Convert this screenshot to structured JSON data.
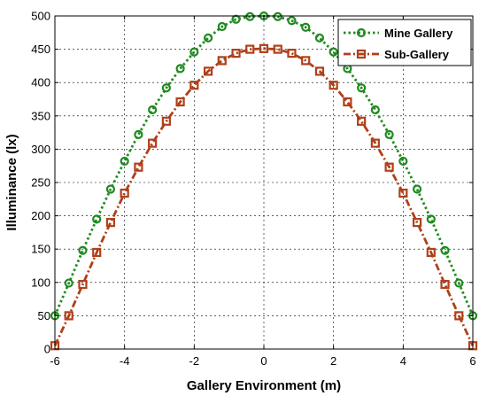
{
  "chart_data": {
    "type": "line",
    "title": "",
    "xlabel": "Gallery Environment (m)",
    "ylabel": "Illuminance (lx)",
    "xlim": [
      -6,
      6
    ],
    "ylim": [
      0,
      500
    ],
    "xticks": [
      -6,
      -4,
      -2,
      0,
      2,
      4,
      6
    ],
    "yticks": [
      0,
      50,
      100,
      150,
      200,
      250,
      300,
      350,
      400,
      450,
      500
    ],
    "grid": true,
    "legend_position": "top-right",
    "series": [
      {
        "name": "Mine Gallery",
        "color": "#1f8a1f",
        "line_style": "dotted",
        "marker": "circle",
        "x": [
          -6.0,
          -5.6,
          -5.2,
          -4.8,
          -4.4,
          -4.0,
          -3.6,
          -3.2,
          -2.8,
          -2.4,
          -2.0,
          -1.6,
          -1.2,
          -0.8,
          -0.4,
          0.0,
          0.4,
          0.8,
          1.2,
          1.6,
          2.0,
          2.4,
          2.8,
          3.2,
          3.6,
          4.0,
          4.4,
          4.8,
          5.2,
          5.6,
          6.0
        ],
        "values": [
          50,
          99,
          148,
          195,
          240,
          282,
          322,
          359,
          392,
          421,
          446,
          467,
          484,
          495,
          499,
          500,
          499,
          493,
          483,
          467,
          446,
          421,
          392,
          359,
          322,
          282,
          240,
          195,
          148,
          99,
          50
        ]
      },
      {
        "name": "Sub-Gallery",
        "color": "#b0401a",
        "line_style": "dashdot",
        "marker": "square",
        "x": [
          -6.0,
          -5.6,
          -5.2,
          -4.8,
          -4.4,
          -4.0,
          -3.6,
          -3.2,
          -2.8,
          -2.4,
          -2.0,
          -1.6,
          -1.2,
          -0.8,
          -0.4,
          0.0,
          0.4,
          0.8,
          1.2,
          1.6,
          2.0,
          2.4,
          2.8,
          3.2,
          3.6,
          4.0,
          4.4,
          4.8,
          5.2,
          5.6,
          6.0
        ],
        "values": [
          5,
          50,
          97,
          145,
          190,
          234,
          273,
          309,
          342,
          371,
          396,
          417,
          433,
          444,
          450,
          451,
          450,
          444,
          433,
          417,
          396,
          371,
          342,
          309,
          273,
          234,
          190,
          145,
          97,
          50,
          5
        ]
      }
    ]
  }
}
